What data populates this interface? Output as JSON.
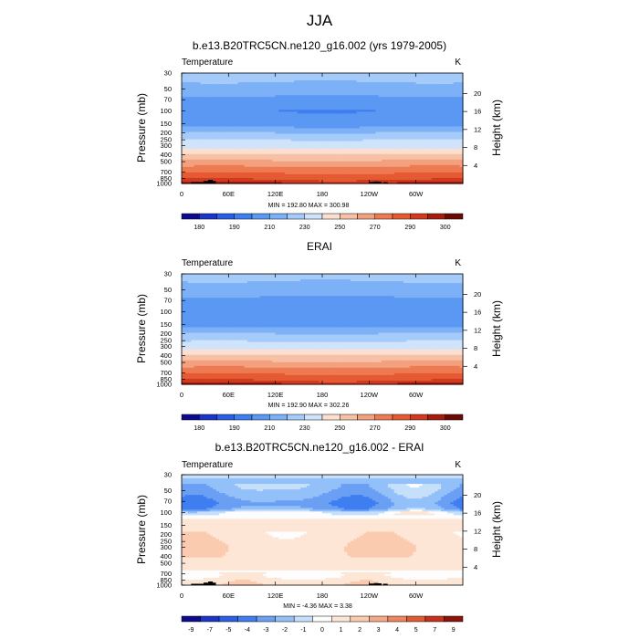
{
  "figure_title": "JJA",
  "chart_data": [
    {
      "type": "heatmap",
      "title": "b.e13.B20TRC5CN.ne120_g16.002 (yrs 1979-2005)",
      "variable_label": "Temperature",
      "units": "K",
      "ylabel": "Pressure (mb)",
      "ylabel_right": "Height (km)",
      "xticks": [
        "0",
        "60E",
        "120E",
        "180",
        "120W",
        "60W"
      ],
      "yticks": [
        "30",
        "50",
        "70",
        "100",
        "150",
        "200",
        "250",
        "300",
        "400",
        "500",
        "700",
        "850",
        "1000"
      ],
      "yticks_right": [
        "20",
        "16",
        "12",
        "8",
        "4"
      ],
      "stats": "MIN = 192.80  MAX = 300.98",
      "min": 192.8,
      "max": 300.98,
      "colorbar_labels": [
        "180",
        "190",
        "210",
        "230",
        "250",
        "270",
        "290",
        "300"
      ],
      "colorbar_levels": [
        180,
        185,
        190,
        200,
        210,
        220,
        230,
        240,
        250,
        260,
        270,
        280,
        290,
        295,
        300
      ],
      "profile_pressure": [
        30,
        40,
        50,
        70,
        100,
        150,
        200,
        250,
        300,
        400,
        500,
        600,
        700,
        850,
        1000
      ],
      "profile_value": [
        225,
        220,
        215,
        207,
        200,
        205,
        220,
        230,
        236,
        251,
        262,
        272,
        279,
        288,
        297
      ]
    },
    {
      "type": "heatmap",
      "title": "ERAI",
      "variable_label": "Temperature",
      "units": "K",
      "ylabel": "Pressure (mb)",
      "ylabel_right": "Height (km)",
      "xticks": [
        "0",
        "60E",
        "120E",
        "180",
        "120W",
        "60W"
      ],
      "yticks": [
        "30",
        "50",
        "70",
        "100",
        "150",
        "200",
        "250",
        "300",
        "400",
        "500",
        "700",
        "850",
        "1000"
      ],
      "yticks_right": [
        "20",
        "16",
        "12",
        "8",
        "4"
      ],
      "stats": "MIN = 192.90  MAX = 302.26",
      "min": 192.9,
      "max": 302.26,
      "colorbar_labels": [
        "180",
        "190",
        "210",
        "230",
        "250",
        "270",
        "290",
        "300"
      ],
      "colorbar_levels": [
        180,
        185,
        190,
        200,
        210,
        220,
        230,
        240,
        250,
        260,
        270,
        280,
        290,
        295,
        300
      ],
      "profile_pressure": [
        30,
        40,
        50,
        70,
        100,
        150,
        200,
        250,
        300,
        400,
        500,
        600,
        700,
        850,
        1000
      ],
      "profile_value": [
        224,
        219,
        214,
        207,
        201,
        206,
        220,
        229,
        236,
        251,
        262,
        272,
        279,
        288,
        297
      ]
    },
    {
      "type": "heatmap",
      "title": "b.e13.B20TRC5CN.ne120_g16.002 - ERAI",
      "variable_label": "Temperature",
      "units": "K",
      "ylabel": "Pressure (mb)",
      "ylabel_right": "Height (km)",
      "xticks": [
        "0",
        "60E",
        "120E",
        "180",
        "120W",
        "60W"
      ],
      "yticks": [
        "30",
        "50",
        "70",
        "100",
        "150",
        "200",
        "250",
        "300",
        "400",
        "500",
        "700",
        "850",
        "1000"
      ],
      "yticks_right": [
        "20",
        "16",
        "12",
        "8",
        "4"
      ],
      "stats": "MIN = -4.36  MAX =  3.38",
      "min": -4.36,
      "max": 3.38,
      "colorbar_labels": [
        "-9",
        "-7",
        "-5",
        "-4",
        "-3",
        "-2",
        "-1",
        "0",
        "1",
        "2",
        "3",
        "4",
        "5",
        "7",
        "9"
      ],
      "colorbar_levels": [
        -8,
        -6,
        -4.5,
        -3.5,
        -2.5,
        -1.5,
        -0.5,
        0.5,
        1.5,
        2.5,
        3.5,
        4.5,
        6,
        8
      ],
      "profile_pressure": [
        30,
        45,
        60,
        75,
        90,
        100,
        130,
        200,
        300,
        400,
        600,
        700,
        750,
        850,
        1000
      ],
      "profile_value": [
        -1.4,
        -1.8,
        -2.6,
        -3.2,
        -2.6,
        -0.3,
        0.8,
        1.0,
        1.3,
        1.2,
        0.6,
        0.3,
        0.2,
        1.0,
        1.3
      ]
    }
  ]
}
